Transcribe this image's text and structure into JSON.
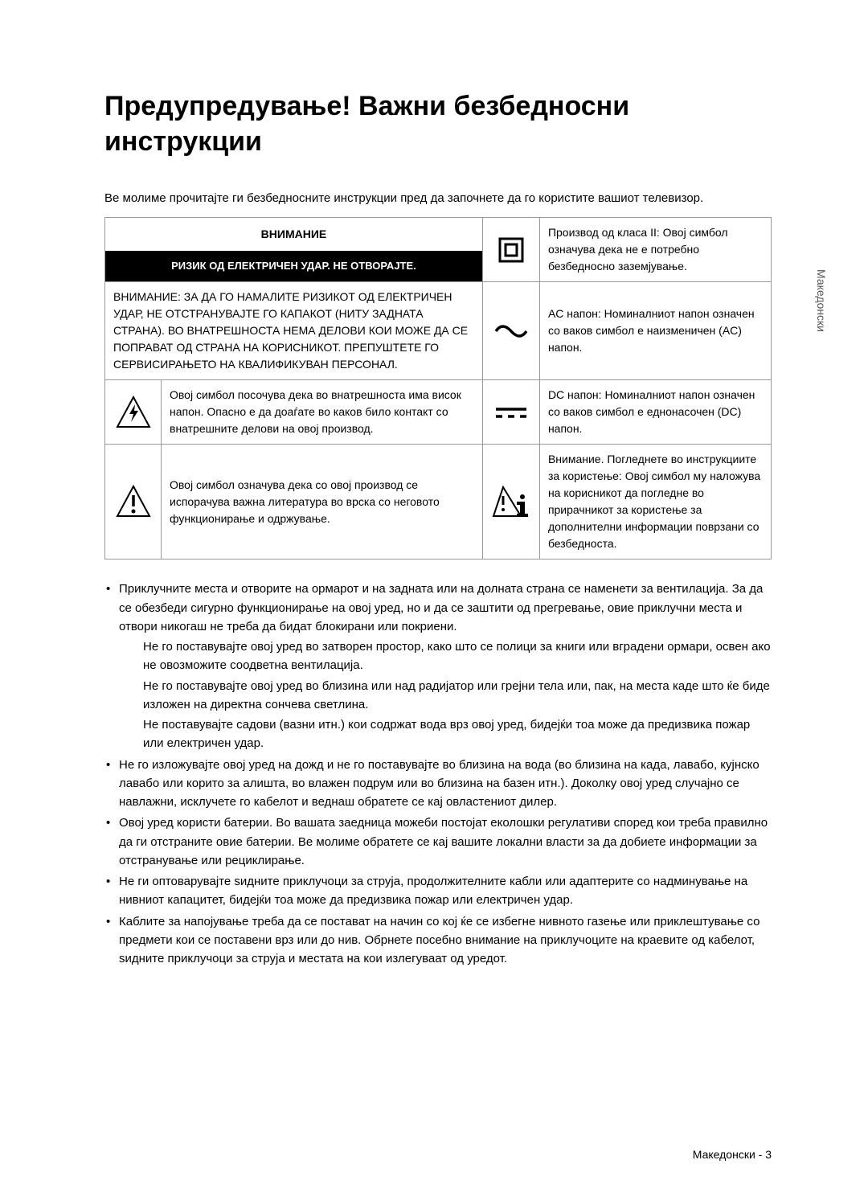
{
  "title": "Предупредување! Важни безбедносни инструкции",
  "intro": "Ве молиме прочитајте ги безбедносните инструкции пред да започнете да го користите вашиот телевизор.",
  "table": {
    "header_main": "ВНИМАНИЕ",
    "header_sub": "РИЗИК ОД ЕЛЕКТРИЧЕН УДАР. НЕ ОТВОРАЈТЕ.",
    "caution_text": "ВНИМАНИЕ: ЗА ДА ГО НАМАЛИТЕ РИЗИКОТ ОД ЕЛЕКТРИЧЕН УДАР, НЕ ОТСТРАНУВАЈТЕ ГО КАПАКОТ (НИТУ ЗАДНАТА СТРАНА). ВО ВНАТРЕШНОСТА НЕМА ДЕЛОВИ КОИ МОЖЕ ДА СЕ ПОПРАВАТ ОД СТРАНА НА КОРИСНИКОТ. ПРЕПУШТЕТЕ ГО СЕРВИСИРАЊЕТО НА КВАЛИФИКУВАН ПЕРСОНАЛ.",
    "row_class2": "Производ од класа II: Овој симбол означува дека не е потребно безбедносно заземјување.",
    "row_ac": "AC напон: Номиналниот напон означен со ваков симбол е наизменичен (AC) напон.",
    "row_voltage_warning": "Овој симбол посочува дека во внатрешноста има висок напон. Опасно е да доаѓате во каков било контакт со внатрешните делови на овој производ.",
    "row_dc": "DC напон: Номиналниот напон означен со ваков симбол е еднонасочен (DC) напон.",
    "row_literature": "Овој симбол означува дека со овој производ се испорачува важна литература во врска со неговото функционирање и одржување.",
    "row_instructions": "Внимание. Погледнете во инструкциите за користење: Овој симбол му наложува на корисникот да погледне во прирачникот за користење за дополнителни информации поврзани со безбедноста."
  },
  "bullets": [
    {
      "text": "Приклучните места и отворите на ормарот и на задната или на долната страна се наменети за вентилација. За да се обезбеди сигурно функционирање на овој уред, но и да се заштити од прегревање, овие приклучни места и отвори никогаш не треба да бидат блокирани или покриени.",
      "subs": [
        "Не го поставувајте овој уред во затворен простор, како што се полици за книги или вградени ормари, освен ако не овозможите соодветна вентилација.",
        "Не го поставувајте овој уред во близина или над радијатор или грејни тела или, пак, на места каде што ќе биде изложен на директна сончева светлина.",
        "Не поставувајте садови (вазни итн.) кои содржат вода врз овој уред, бидејќи тоа може да предизвика пожар или електричен удар."
      ]
    },
    {
      "text": "Не го изложувајте овој уред на дожд и не го поставувајте во близина на вода (во близина на када, лавабо, кујнско лавабо или корито за алишта, во влажен подрум или во близина на базен итн.). Доколку овој уред случајно се навлажни, исклучете го кабелот и веднаш обратете се кај овластениот дилер.",
      "subs": []
    },
    {
      "text": "Овој уред користи батерии. Во вашата заедница можеби постојат еколошки регулативи според кои треба правилно да ги отстраните овие батерии. Ве молиме обратете се кај вашите локални власти за да добиете информации за отстранување или рециклирање.",
      "subs": []
    },
    {
      "text": "Не ги оптоварувајте ѕидните приклучоци за струја, продолжителните кабли или адаптерите со надминување на нивниот капацитет, бидејќи тоа може да предизвика пожар или електричен удар.",
      "subs": []
    },
    {
      "text": "Каблите за напојување треба да се постават на начин со кој ќе се избегне нивното газење или приклештување со предмети кои се поставени врз или до нив. Обрнете посебно внимание на приклучоците на краевите од кабелот, ѕидните приклучоци за струја и местата на кои излегуваат од уредот.",
      "subs": []
    }
  ],
  "side_label": "Македонски",
  "page_number": "Македонски - 3",
  "colors": {
    "bg": "#ffffff",
    "text": "#000000",
    "border": "#999999",
    "header_bg": "#000000",
    "header_fg": "#ffffff",
    "side": "#555555"
  }
}
